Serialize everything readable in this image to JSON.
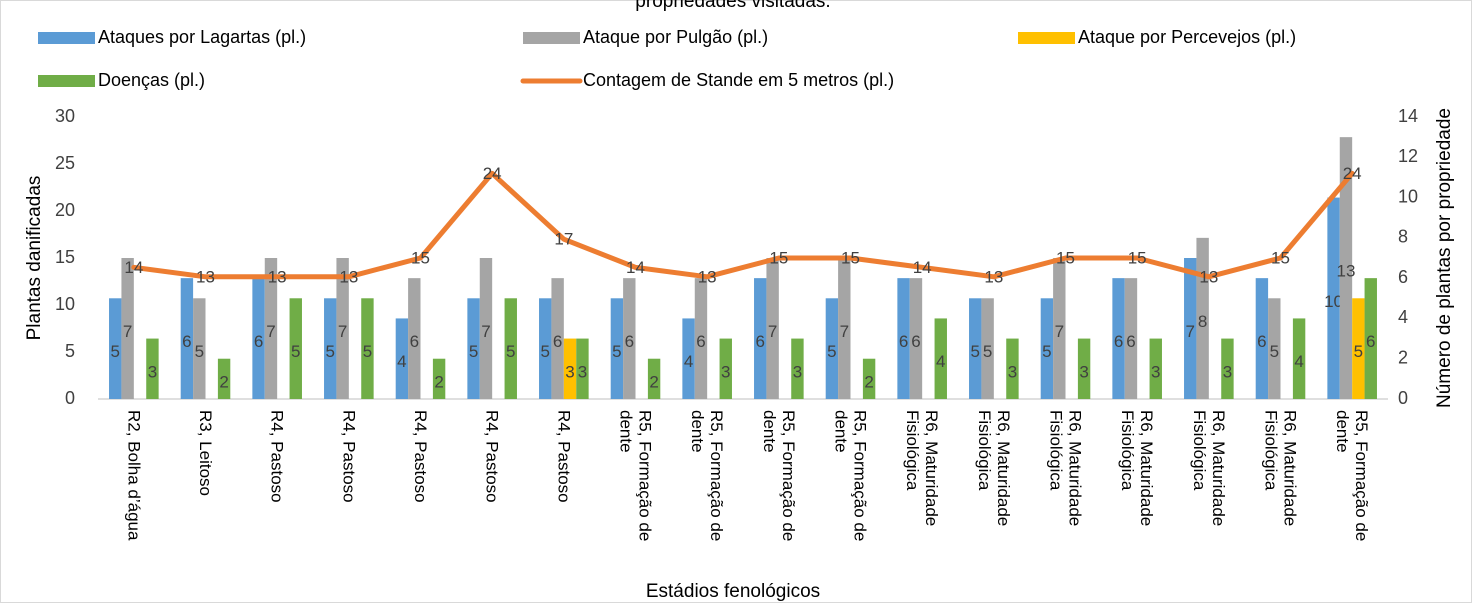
{
  "chart_data": {
    "type": "bar",
    "title": "propriedades visitadas.",
    "x_label": "Estádios fenológicos",
    "y_label": "Plantas danificadas",
    "y2_label": "Número de plantas por propriedade",
    "categories": [
      "R2, Bolha d’água",
      "R3, Leitoso",
      "R4, Pastoso",
      "R4, Pastoso",
      "R4, Pastoso",
      "R4, Pastoso",
      "R4, Pastoso",
      "R5, Formação de dente",
      "R5, Formação de dente",
      "R5, Formação de dente",
      "R5, Formação de dente",
      "R6, Maturidade Fisiológica",
      "R6, Maturidade Fisiológica",
      "R6, Maturidade Fisiológica",
      "R6, Maturidade Fisiológica",
      "R6, Maturidade Fisiológica",
      "R6, Maturidade Fisiológica",
      "R5, Formação de dente"
    ],
    "series": [
      {
        "name": "Ataques por Lagartas (pl.)",
        "color": "#5b9bd5",
        "type": "bar",
        "axis": "y2",
        "values": [
          5,
          6,
          6,
          5,
          4,
          5,
          5,
          5,
          4,
          6,
          5,
          6,
          5,
          5,
          6,
          7,
          6,
          10
        ]
      },
      {
        "name": "Ataque por Pulgão (pl.)",
        "color": "#a5a5a5",
        "type": "bar",
        "axis": "y2",
        "values": [
          7,
          5,
          7,
          7,
          6,
          7,
          6,
          6,
          6,
          7,
          7,
          6,
          5,
          7,
          6,
          8,
          5,
          13
        ]
      },
      {
        "name": "Ataque por Percevejos (pl.)",
        "color": "#ffc000",
        "type": "bar",
        "axis": "y2",
        "values": [
          null,
          null,
          null,
          null,
          null,
          null,
          3,
          null,
          null,
          null,
          null,
          null,
          null,
          null,
          null,
          null,
          null,
          5
        ]
      },
      {
        "name": "Doenças (pl.)",
        "color": "#70ad47",
        "type": "bar",
        "axis": "y2",
        "values": [
          3,
          2,
          5,
          5,
          2,
          5,
          3,
          2,
          3,
          3,
          2,
          4,
          3,
          3,
          3,
          3,
          4,
          6
        ]
      },
      {
        "name": "Contagem de Stande em 5 metros (pl.)",
        "color": "#ed7d31",
        "type": "line",
        "axis": "y",
        "values": [
          14,
          13,
          13,
          13,
          15,
          24,
          17,
          14,
          13,
          15,
          15,
          14,
          13,
          15,
          15,
          13,
          15,
          24
        ]
      }
    ],
    "ylim": [
      0,
      30
    ],
    "yticks": [
      0,
      5,
      10,
      15,
      20,
      25,
      30
    ],
    "y2lim": [
      0,
      14
    ],
    "y2ticks": [
      0,
      2,
      4,
      6,
      8,
      10,
      12,
      14
    ],
    "grid": false
  }
}
